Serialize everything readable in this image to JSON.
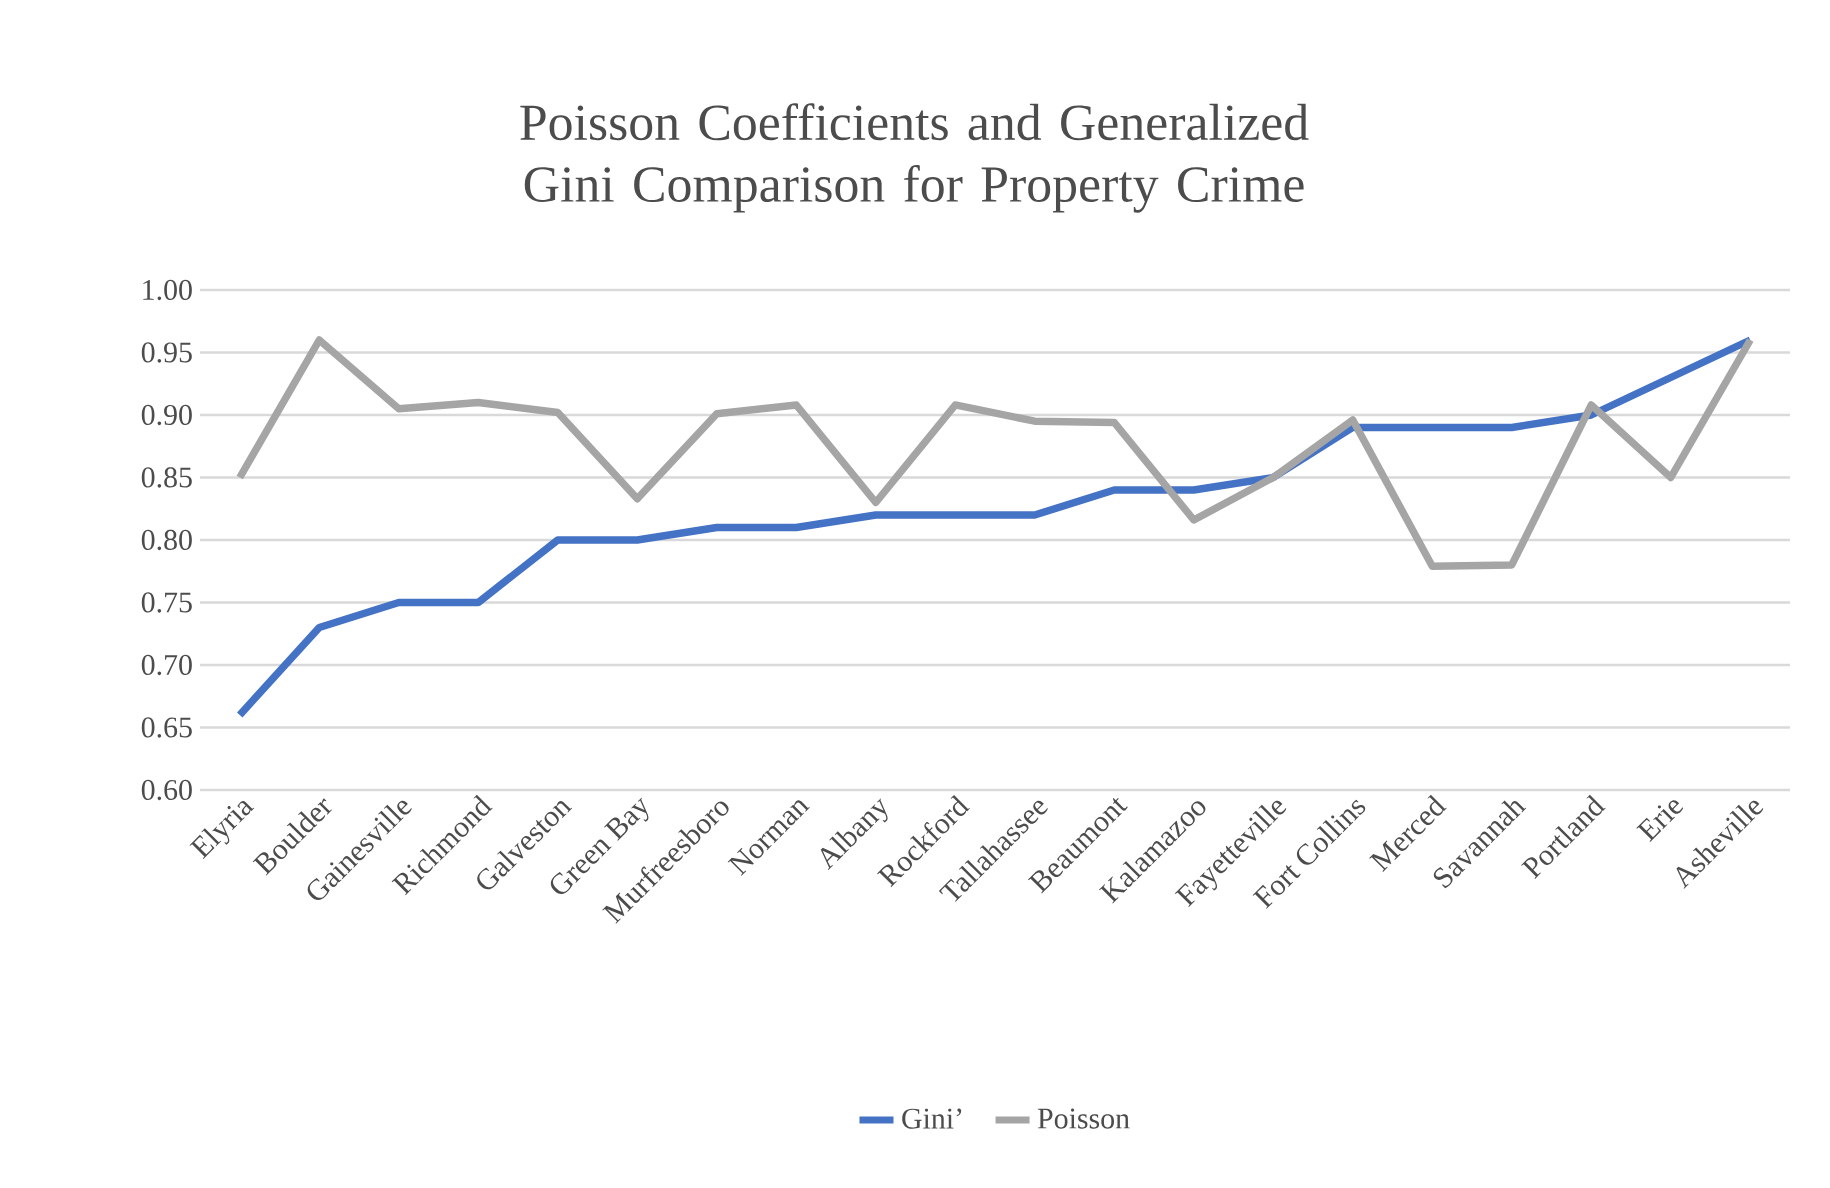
{
  "chart_data": {
    "type": "line",
    "title": "Poisson Coefficients and Generalized Gini Comparison for Property Crime",
    "categories": [
      "Elyria",
      "Boulder",
      "Gainesville",
      "Richmond",
      "Galveston",
      "Green Bay",
      "Murfreesboro",
      "Norman",
      "Albany",
      "Rockford",
      "Tallahassee",
      "Beaumont",
      "Kalamazoo",
      "Fayetteville",
      "Fort Collins",
      "Merced",
      "Savannah",
      "Portland",
      "Erie",
      "Asheville"
    ],
    "series": [
      {
        "name": "Gini’",
        "color": "#4472c4",
        "values": [
          0.66,
          0.73,
          0.75,
          0.75,
          0.8,
          0.8,
          0.81,
          0.81,
          0.82,
          0.82,
          0.82,
          0.84,
          0.84,
          0.85,
          0.89,
          0.89,
          0.89,
          0.9,
          0.93,
          0.96
        ]
      },
      {
        "name": "Poisson",
        "color": "#a5a5a5",
        "values": [
          0.85,
          0.96,
          0.905,
          0.91,
          0.902,
          0.833,
          0.901,
          0.908,
          0.83,
          0.908,
          0.895,
          0.894,
          0.816,
          0.85,
          0.896,
          0.779,
          0.78,
          0.908,
          0.85,
          0.96
        ]
      }
    ],
    "ylim": [
      0.6,
      1.0
    ],
    "yticks": [
      {
        "value": 0.6,
        "label": "0.60"
      },
      {
        "value": 0.65,
        "label": "0.65"
      },
      {
        "value": 0.7,
        "label": "0.70"
      },
      {
        "value": 0.75,
        "label": "0.75"
      },
      {
        "value": 0.8,
        "label": "0.80"
      },
      {
        "value": 0.85,
        "label": "0.85"
      },
      {
        "value": 0.9,
        "label": "0.90"
      },
      {
        "value": 0.95,
        "label": "0.95"
      },
      {
        "value": 1.0,
        "label": "1.00"
      }
    ],
    "grid": "y",
    "legend": "bottom",
    "marker": "none",
    "line_style": "solid"
  }
}
